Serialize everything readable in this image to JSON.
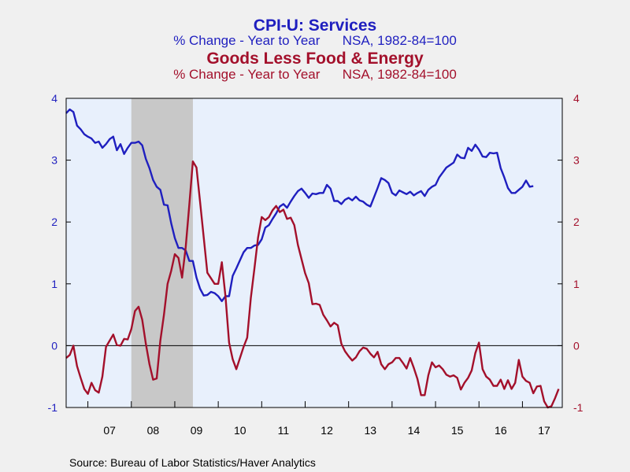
{
  "chart_data": {
    "type": "line",
    "title": "CPI-U: Services",
    "subtitle": "% Change - Year to Year      NSA, 1982-84=100",
    "title2": "Goods Less Food & Energy",
    "subtitle2": "% Change - Year to Year      NSA, 1982-84=100",
    "source": "Source:  Bureau of Labor Statistics/Haver Analytics",
    "x_tick_labels": [
      "07",
      "08",
      "09",
      "10",
      "11",
      "12",
      "13",
      "14",
      "15",
      "16",
      "17"
    ],
    "y_left": {
      "ticks": [
        "4",
        "3",
        "2",
        "1",
        "0",
        "-1"
      ],
      "ylim": [
        -1,
        4
      ]
    },
    "y_right": {
      "ticks": [
        "4",
        "3",
        "2",
        "1",
        "0",
        "-1"
      ],
      "ylim": [
        -1,
        4
      ]
    },
    "x_range": [
      "2006-07",
      "2017-12"
    ],
    "recession_shading": [
      "2008-01",
      "2009-06"
    ],
    "zero_line": true,
    "series": [
      {
        "color": "#1f1fbf",
        "x_start": "2006-07",
        "values": [
          3.76,
          3.82,
          3.78,
          3.56,
          3.5,
          3.42,
          3.38,
          3.35,
          3.28,
          3.3,
          3.2,
          3.26,
          3.34,
          3.38,
          3.16,
          3.26,
          3.1,
          3.2,
          3.28,
          3.28,
          3.3,
          3.24,
          3.02,
          2.87,
          2.68,
          2.57,
          2.52,
          2.28,
          2.27,
          1.98,
          1.74,
          1.58,
          1.58,
          1.54,
          1.37,
          1.37,
          1.1,
          0.92,
          0.81,
          0.82,
          0.87,
          0.85,
          0.8,
          0.72,
          0.8,
          0.8,
          1.13,
          1.25,
          1.38,
          1.51,
          1.58,
          1.58,
          1.62,
          1.63,
          1.72,
          1.91,
          1.95,
          2.05,
          2.14,
          2.25,
          2.29,
          2.23,
          2.33,
          2.42,
          2.5,
          2.54,
          2.47,
          2.39,
          2.46,
          2.45,
          2.47,
          2.47,
          2.6,
          2.54,
          2.34,
          2.34,
          2.29,
          2.36,
          2.39,
          2.35,
          2.41,
          2.35,
          2.33,
          2.28,
          2.25,
          2.4,
          2.55,
          2.71,
          2.68,
          2.63,
          2.47,
          2.43,
          2.51,
          2.48,
          2.45,
          2.49,
          2.43,
          2.47,
          2.5,
          2.42,
          2.52,
          2.57,
          2.6,
          2.72,
          2.8,
          2.88,
          2.92,
          2.96,
          3.09,
          3.04,
          3.03,
          3.2,
          3.15,
          3.25,
          3.17,
          3.06,
          3.05,
          3.12,
          3.11,
          3.12,
          2.87,
          2.72,
          2.55,
          2.47,
          2.47,
          2.52,
          2.57,
          2.67,
          2.57,
          2.58
        ]
      },
      {
        "color": "#a3102b",
        "x_start": "2006-07",
        "values": [
          -0.2,
          -0.15,
          0.0,
          -0.33,
          -0.52,
          -0.7,
          -0.78,
          -0.6,
          -0.72,
          -0.76,
          -0.5,
          -0.02,
          0.08,
          0.18,
          0.01,
          0.0,
          0.11,
          0.1,
          0.27,
          0.56,
          0.63,
          0.42,
          0.03,
          -0.3,
          -0.55,
          -0.53,
          0.08,
          0.5,
          1.0,
          1.21,
          1.48,
          1.42,
          1.1,
          1.59,
          2.28,
          2.98,
          2.88,
          2.32,
          1.75,
          1.18,
          1.09,
          1.0,
          1.0,
          1.35,
          0.8,
          0.05,
          -0.22,
          -0.38,
          -0.2,
          -0.02,
          0.13,
          0.77,
          1.25,
          1.75,
          2.08,
          2.03,
          2.08,
          2.19,
          2.26,
          2.16,
          2.2,
          2.05,
          2.07,
          1.95,
          1.63,
          1.4,
          1.17,
          1.01,
          0.67,
          0.68,
          0.66,
          0.5,
          0.41,
          0.31,
          0.37,
          0.33,
          0.03,
          -0.09,
          -0.17,
          -0.24,
          -0.19,
          -0.09,
          -0.03,
          -0.05,
          -0.13,
          -0.19,
          -0.1,
          -0.3,
          -0.38,
          -0.3,
          -0.27,
          -0.2,
          -0.2,
          -0.28,
          -0.37,
          -0.2,
          -0.36,
          -0.54,
          -0.8,
          -0.8,
          -0.48,
          -0.27,
          -0.35,
          -0.32,
          -0.38,
          -0.47,
          -0.5,
          -0.48,
          -0.52,
          -0.71,
          -0.6,
          -0.52,
          -0.4,
          -0.12,
          0.05,
          -0.38,
          -0.5,
          -0.55,
          -0.65,
          -0.65,
          -0.55,
          -0.7,
          -0.56,
          -0.7,
          -0.6,
          -0.23,
          -0.5,
          -0.57,
          -0.6,
          -0.77,
          -0.66,
          -0.65,
          -0.9,
          -1.0,
          -0.98,
          -0.85,
          -0.7
        ]
      }
    ]
  }
}
